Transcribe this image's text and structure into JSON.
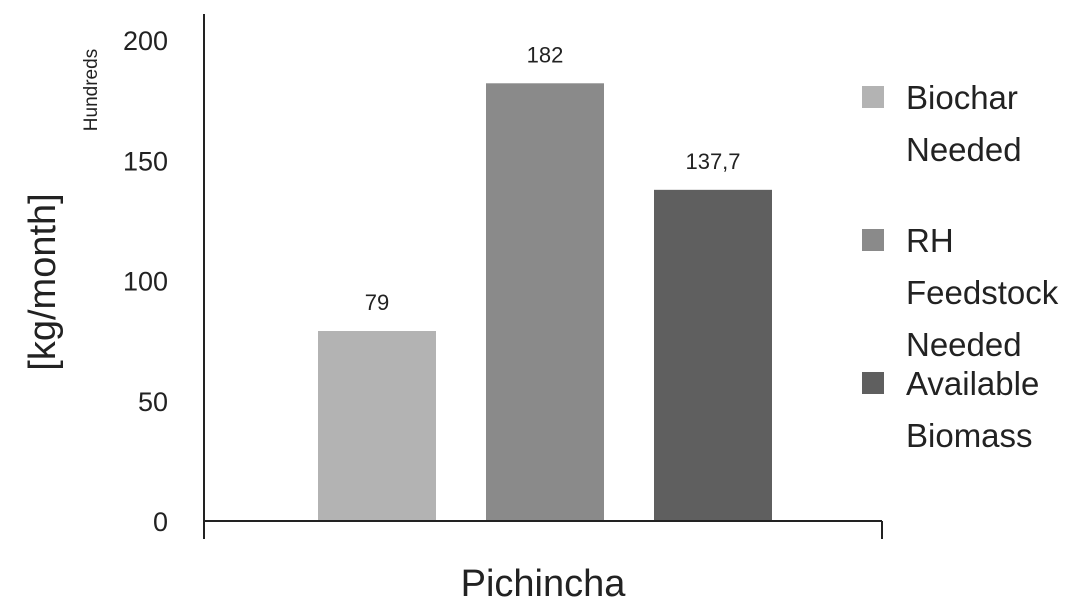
{
  "chart_data": {
    "type": "bar",
    "categories": [
      "Pichincha"
    ],
    "series": [
      {
        "name": "Biochar Needed",
        "values": [
          79
        ],
        "label": "79",
        "color": "#b3b3b3"
      },
      {
        "name": "RH Feedstock Needed",
        "values": [
          182
        ],
        "label": "182",
        "color": "#8a8a8a"
      },
      {
        "name": "Available Biomass",
        "values": [
          137.7
        ],
        "label": "137,7",
        "color": "#5f5f5f"
      }
    ],
    "xlabel": "Pichincha",
    "ylabel": "[kg/month]",
    "display_units": "Hundreds",
    "ylim": [
      0,
      200
    ],
    "yticks": [
      "0",
      "50",
      "100",
      "150",
      "200"
    ],
    "grid": false,
    "legend_position": "right",
    "legend_lines": [
      [
        "Biochar",
        "Needed"
      ],
      [
        "RH",
        "Feedstock",
        "Needed"
      ],
      [
        "Available",
        "Biomass"
      ]
    ]
  }
}
